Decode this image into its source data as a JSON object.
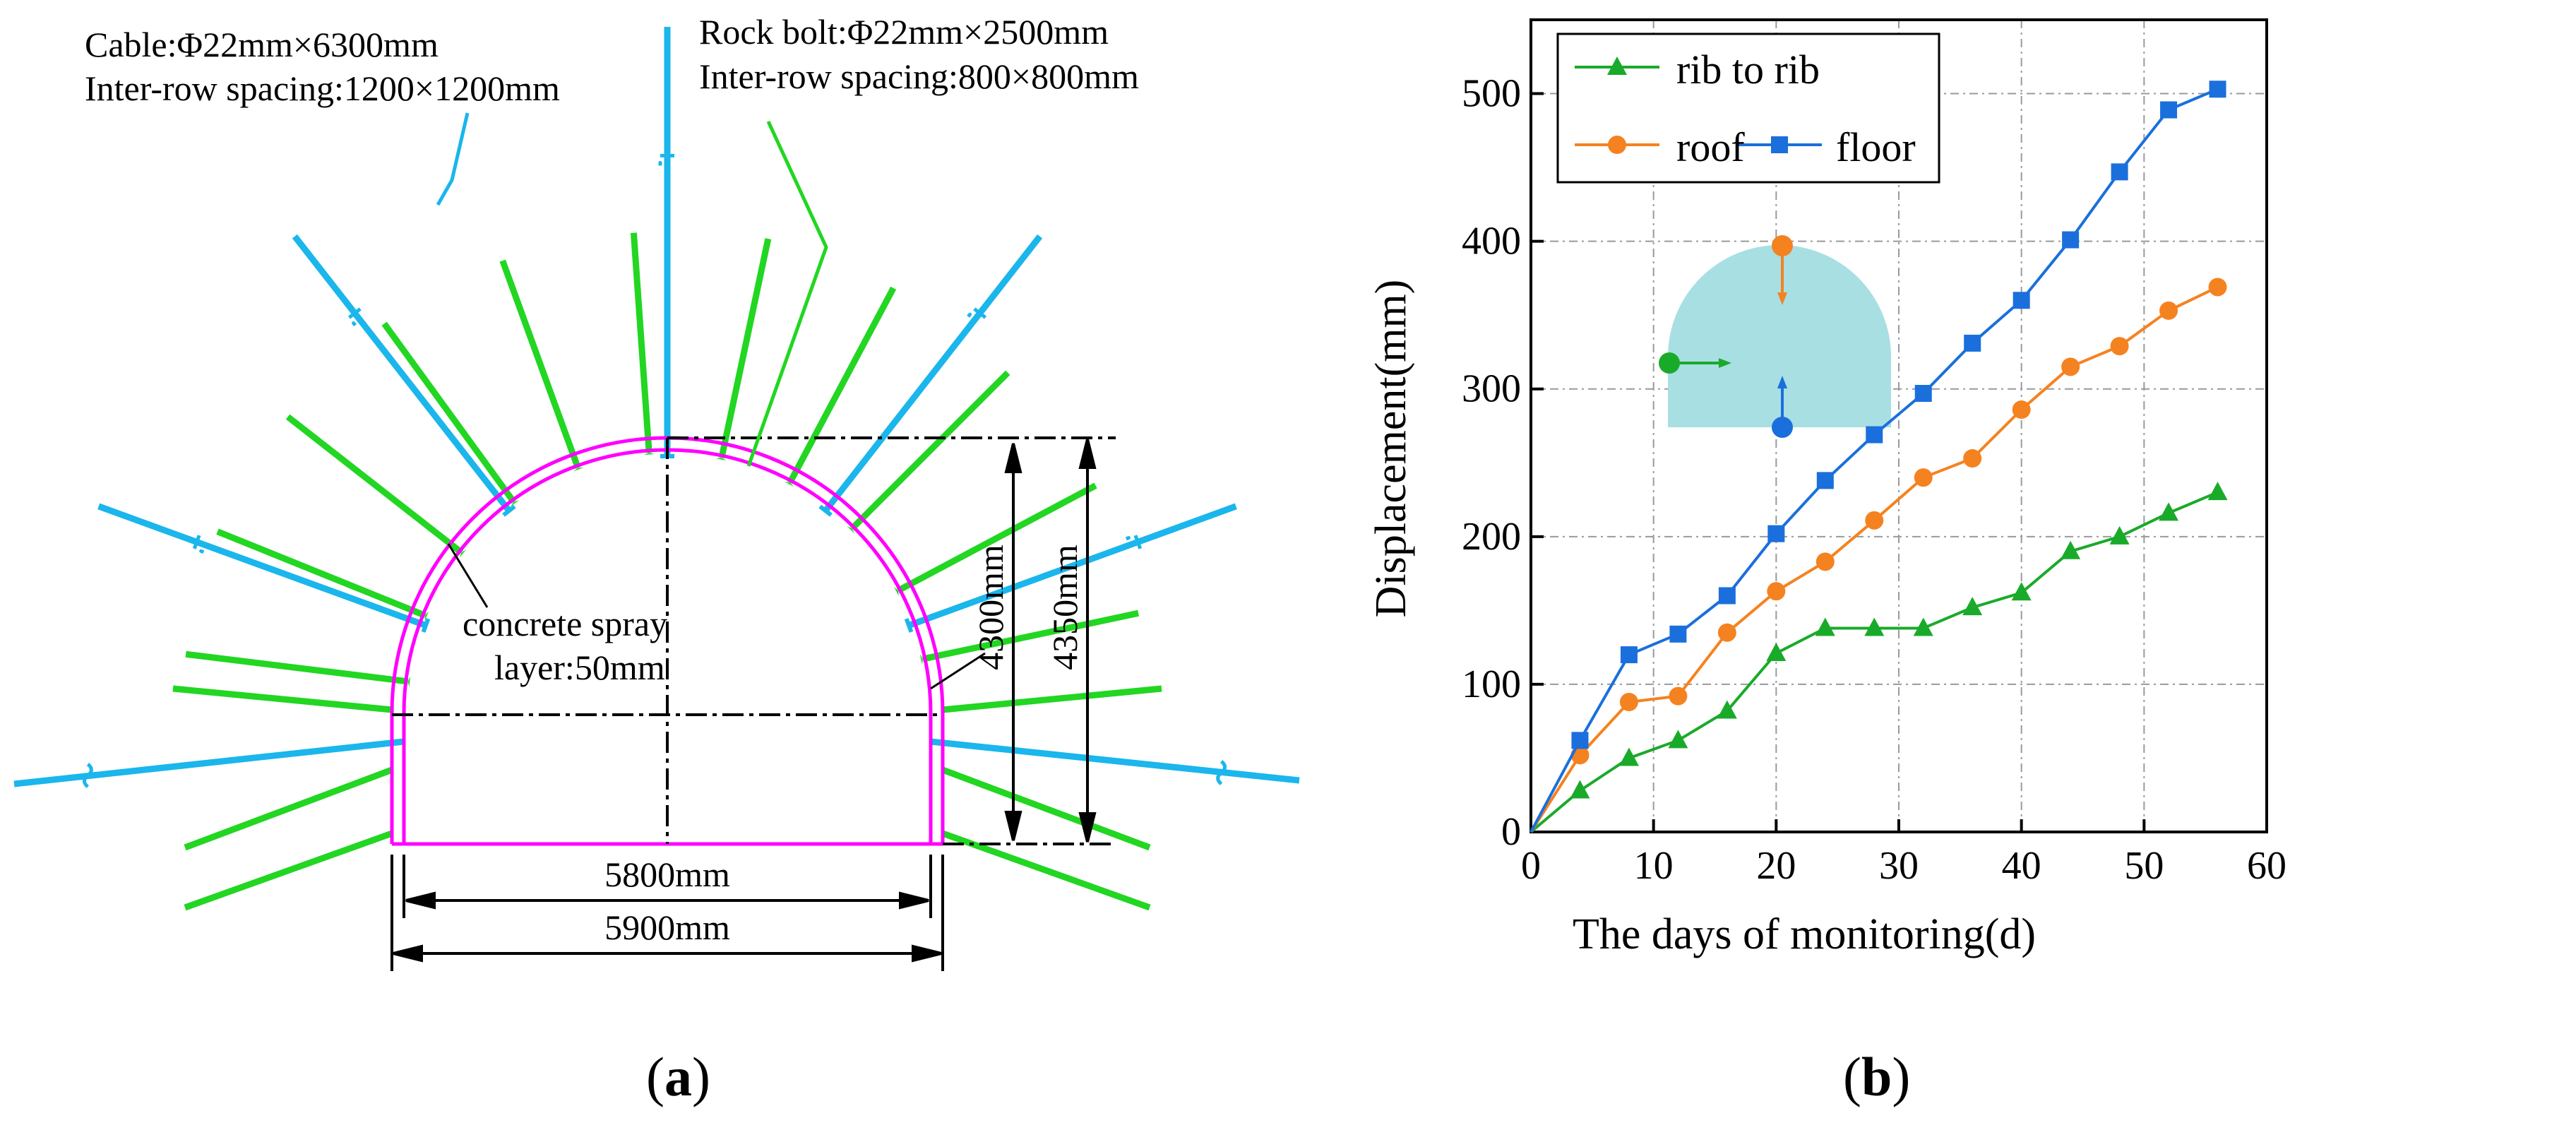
{
  "panel_a": {
    "caption_open": "(",
    "caption_letter": "a",
    "caption_close": ")",
    "cable_spec": "Cable:Φ22mm×6300mm",
    "cable_spacing": "Inter-row spacing:1200×1200mm",
    "bolt_spec": "Rock bolt:Φ22mm×2500mm",
    "bolt_spacing": "Inter-row spacing:800×800mm",
    "spray_label_1": "concrete spray",
    "spray_label_2": "layer:50mm",
    "dim_inner_height": "4300mm",
    "dim_outer_height": "4350mm",
    "dim_inner_width": "5800mm",
    "dim_outer_width": "5900mm",
    "colors": {
      "cable": "#1ab6ec",
      "bolt": "#22d622",
      "lining": "#ff00ff",
      "dims": "#000000"
    }
  },
  "panel_b": {
    "caption_open": "(",
    "caption_letter": "b",
    "caption_close": ")"
  },
  "chart_data": {
    "type": "line",
    "title": "",
    "xlabel": "The days of monitoring(d)",
    "ylabel": "Displacement(mm)",
    "xlim": [
      0,
      60
    ],
    "ylim": [
      0,
      550
    ],
    "xticks": [
      0,
      10,
      20,
      30,
      40,
      50,
      60
    ],
    "yticks": [
      0,
      100,
      200,
      300,
      400,
      500
    ],
    "grid": true,
    "legend_position": "top-left",
    "x": [
      0,
      4,
      8,
      12,
      16,
      20,
      24,
      28,
      32,
      36,
      40,
      44,
      48,
      52,
      56
    ],
    "series": [
      {
        "name": "rib to rib",
        "marker": "triangle",
        "color": "#1aaa2a",
        "values": [
          0,
          28,
          50,
          62,
          82,
          121,
          138,
          138,
          138,
          152,
          162,
          190,
          200,
          216,
          230
        ]
      },
      {
        "name": "roof",
        "marker": "circle",
        "color": "#f58220",
        "values": [
          0,
          52,
          88,
          92,
          135,
          163,
          183,
          211,
          240,
          253,
          286,
          315,
          329,
          353,
          369
        ]
      },
      {
        "name": "floor",
        "marker": "square",
        "color": "#1a6fdc",
        "values": [
          0,
          62,
          120,
          134,
          160,
          202,
          238,
          269,
          297,
          331,
          360,
          401,
          447,
          489,
          503
        ]
      }
    ],
    "inset_colors": {
      "shape": "#a8dfe3",
      "roof": "#f58220",
      "rib": "#1aaa2a",
      "floor": "#1a6fdc"
    }
  }
}
